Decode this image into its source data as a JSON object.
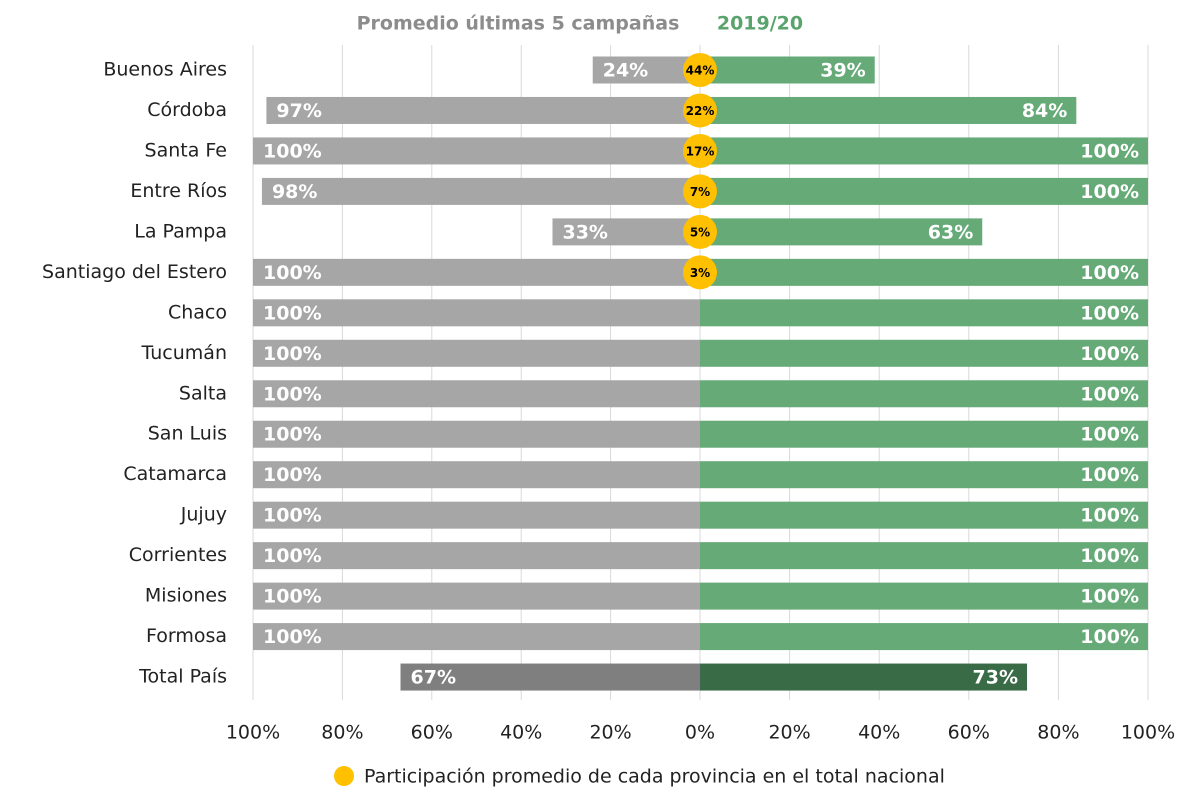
{
  "chart_data": {
    "type": "butterfly",
    "categories": [
      "Buenos Aires",
      "Córdoba",
      "Santa Fe",
      "Entre Ríos",
      "La Pampa",
      "Santiago del Estero",
      "Chaco",
      "Tucumán",
      "Salta",
      "San Luis",
      "Catamarca",
      "Jujuy",
      "Corrientes",
      "Misiones",
      "Formosa",
      "Total País"
    ],
    "series": [
      {
        "name": "Promedio últimas 5 campañas",
        "side": "left",
        "color": "#a6a6a6",
        "total_color": "#7f7f7f",
        "values": [
          24,
          97,
          100,
          98,
          33,
          100,
          100,
          100,
          100,
          100,
          100,
          100,
          100,
          100,
          100,
          67
        ],
        "value_labels": [
          "24%",
          "97%",
          "100%",
          "98%",
          "33%",
          "100%",
          "100%",
          "100%",
          "100%",
          "100%",
          "100%",
          "100%",
          "100%",
          "100%",
          "100%",
          "67%"
        ]
      },
      {
        "name": "2019/20",
        "side": "right",
        "color": "#66aa78",
        "total_color": "#3a6b47",
        "values": [
          39,
          84,
          100,
          100,
          63,
          100,
          100,
          100,
          100,
          100,
          100,
          100,
          100,
          100,
          100,
          73
        ],
        "value_labels": [
          "39%",
          "84%",
          "100%",
          "100%",
          "63%",
          "100%",
          "100%",
          "100%",
          "100%",
          "100%",
          "100%",
          "100%",
          "100%",
          "100%",
          "100%",
          "73%"
        ]
      }
    ],
    "markers": {
      "name": "Participación promedio de cada provincia en el total nacional",
      "color": "#ffc000",
      "values": [
        44,
        22,
        17,
        7,
        5,
        3,
        null,
        null,
        null,
        null,
        null,
        null,
        null,
        null,
        null,
        null
      ],
      "value_labels": [
        "44%",
        "22%",
        "17%",
        "7%",
        "5%",
        "3%",
        null,
        null,
        null,
        null,
        null,
        null,
        null,
        null,
        null,
        null
      ]
    },
    "xlim_left": [
      100,
      0
    ],
    "xticks_left": [
      {
        "value": 100,
        "label": "100%"
      },
      {
        "value": 80,
        "label": "80%"
      },
      {
        "value": 60,
        "label": "60%"
      },
      {
        "value": 40,
        "label": "40%"
      },
      {
        "value": 20,
        "label": "20%"
      }
    ],
    "xlim_right": [
      0,
      100
    ],
    "xticks_right": [
      {
        "value": 0,
        "label": "0%"
      },
      {
        "value": 20,
        "label": "20%"
      },
      {
        "value": 40,
        "label": "40%"
      },
      {
        "value": 60,
        "label": "60%"
      },
      {
        "value": 80,
        "label": "80%"
      },
      {
        "value": 100,
        "label": "100%"
      }
    ],
    "grid": true
  }
}
